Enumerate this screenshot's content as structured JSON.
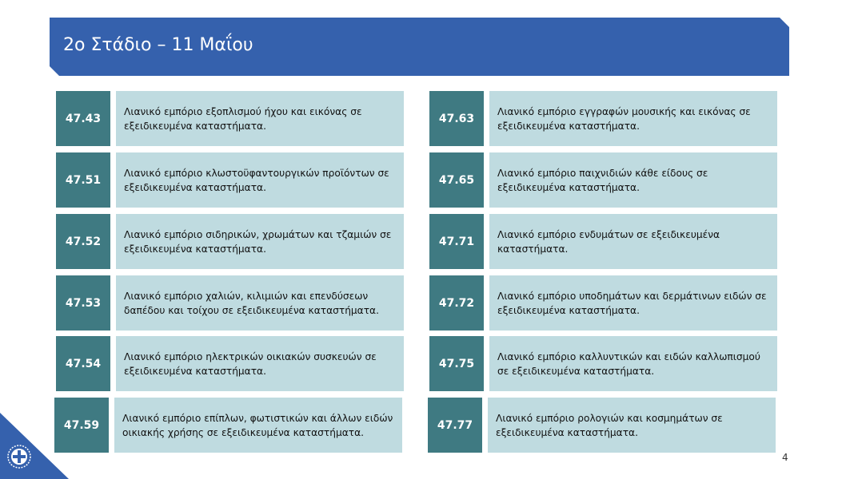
{
  "header": {
    "title": "2ο Στάδιο – 11 Μαΐου"
  },
  "left": [
    {
      "code": "47.43",
      "desc": "Λιανικό εμπόριο εξοπλισμού ήχου και εικόνας σε εξειδικευμένα καταστήματα."
    },
    {
      "code": "47.51",
      "desc": "Λιανικό εμπόριο κλωστοϋφαντουργικών προϊόντων σε εξειδικευμένα καταστήματα."
    },
    {
      "code": "47.52",
      "desc": "Λιανικό εμπόριο σιδηρικών, χρωμάτων και τζαμιών σε εξειδικευμένα καταστήματα."
    },
    {
      "code": "47.53",
      "desc": "Λιανικό εμπόριο χαλιών, κιλιμιών και επενδύσεων δαπέδου και τοίχου σε εξειδικευμένα καταστήματα."
    },
    {
      "code": "47.54",
      "desc": "Λιανικό εμπόριο ηλεκτρικών οικιακών συσκευών σε εξειδικευμένα καταστήματα."
    },
    {
      "code": "47.59",
      "desc": "Λιανικό εμπόριο επίπλων, φωτιστικών και άλλων ειδών οικιακής χρήσης σε εξειδικευμένα καταστήματα."
    }
  ],
  "right": [
    {
      "code": "47.63",
      "desc": "Λιανικό εμπόριο εγγραφών μουσικής και εικόνας σε εξειδικευμένα καταστήματα."
    },
    {
      "code": "47.65",
      "desc": "Λιανικό εμπόριο παιχνιδιών κάθε είδους σε εξειδικευμένα καταστήματα."
    },
    {
      "code": "47.71",
      "desc": "Λιανικό εμπόριο ενδυμάτων σε εξειδικευμένα καταστήματα."
    },
    {
      "code": "47.72",
      "desc": "Λιανικό εμπόριο υποδημάτων και δερμάτινων ειδών σε εξειδικευμένα καταστήματα."
    },
    {
      "code": "47.75",
      "desc": "Λιανικό εμπόριο καλλυντικών και ειδών καλλωπισμού σε εξειδικευμένα καταστήματα."
    },
    {
      "code": "47.77",
      "desc": "Λιανικό εμπόριο ρολογιών και κοσμημάτων σε εξειδικευμένα καταστήματα."
    }
  ],
  "page_number": "4",
  "colors": {
    "header": "#3561ad",
    "code_box": "#3f7a82",
    "desc_box": "#bfdbe0"
  },
  "icons": {
    "emblem": "greek-coat-of-arms-icon"
  }
}
